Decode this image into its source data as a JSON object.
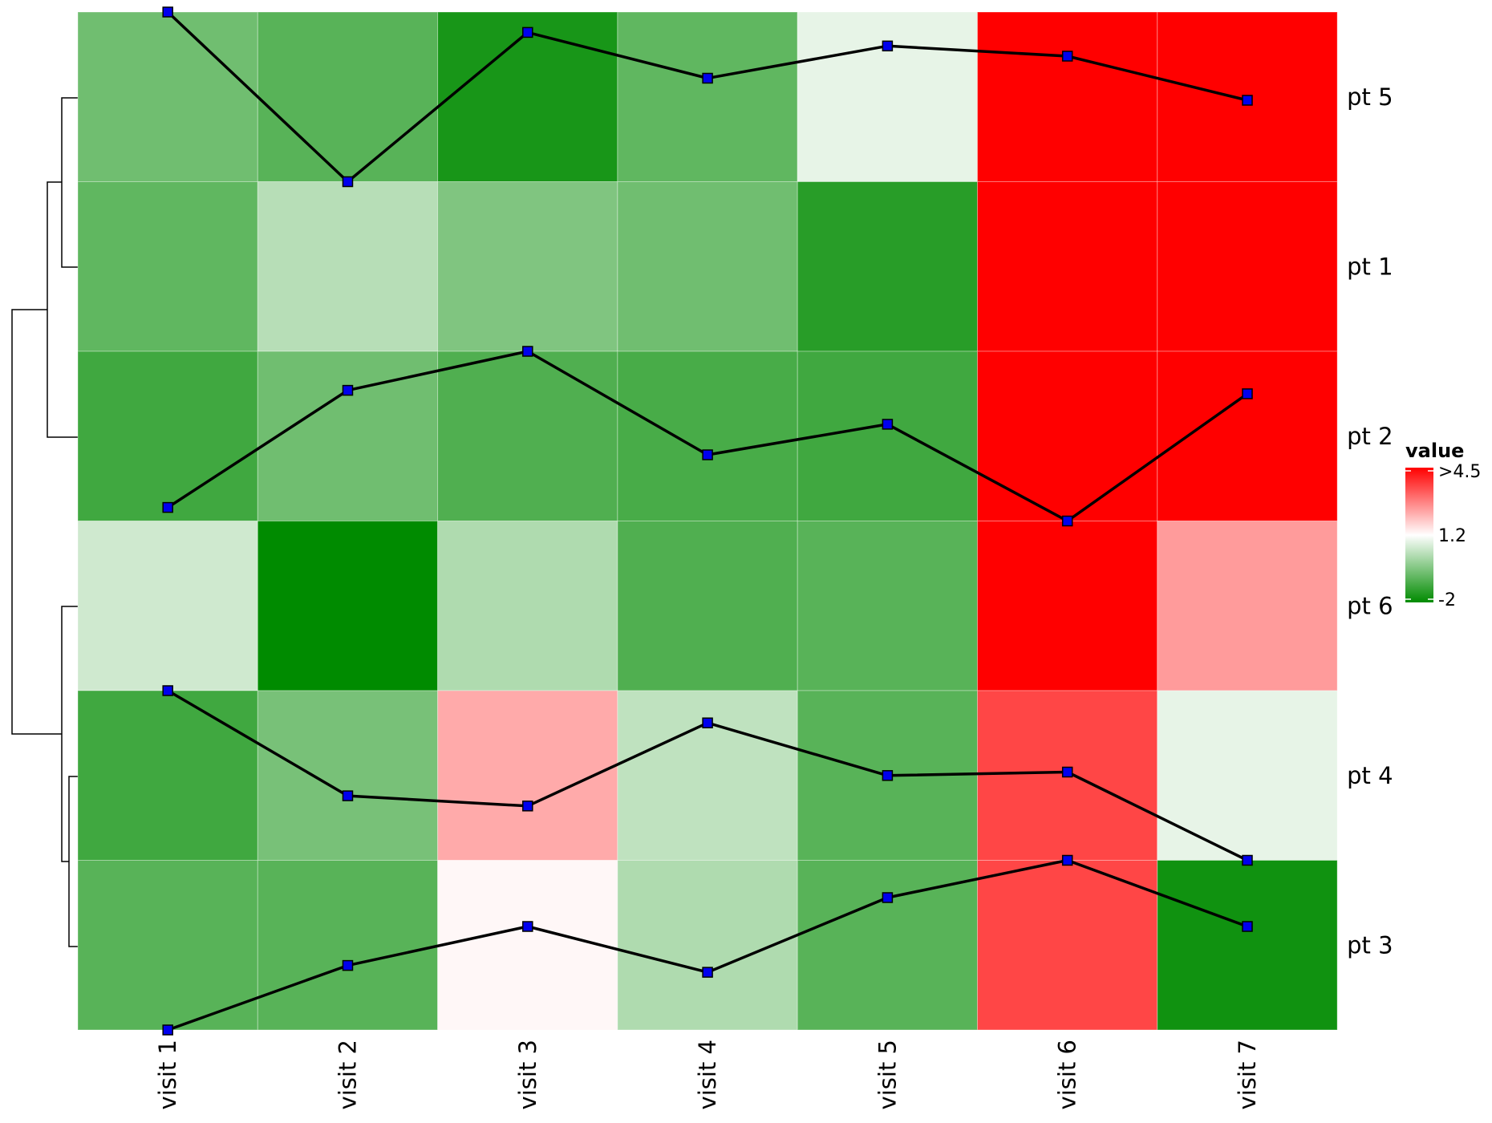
{
  "chart_data": {
    "type": "heatmap",
    "title": "",
    "columns": [
      "visit 1",
      "visit 2",
      "visit 3",
      "visit 4",
      "visit 5",
      "visit 6",
      "visit 7"
    ],
    "rows": [
      "pt 5",
      "pt 1",
      "pt 2",
      "pt 6",
      "pt 4",
      "pt 3"
    ],
    "values": [
      [
        -0.6,
        -0.9,
        -1.7,
        -0.8,
        0.9,
        4.5,
        4.5
      ],
      [
        -0.8,
        0.3,
        -0.4,
        -0.6,
        -1.5,
        4.5,
        4.5
      ],
      [
        -1.2,
        -0.6,
        -1.0,
        -1.1,
        -1.2,
        4.5,
        4.5
      ],
      [
        0.6,
        -2.0,
        0.2,
        -1.0,
        -0.9,
        4.5,
        2.5
      ],
      [
        -1.2,
        -0.5,
        2.3,
        0.4,
        -0.9,
        3.6,
        0.9
      ],
      [
        -0.9,
        -0.9,
        1.3,
        0.2,
        -0.9,
        3.6,
        -1.8
      ]
    ],
    "clip_note_max": ">4.5",
    "row_line_overlays": [
      [
        1.0,
        0.0,
        0.88,
        0.61,
        0.8,
        0.74,
        0.48
      ],
      [
        0.08,
        0.77,
        1.0,
        0.39,
        0.57,
        0.0,
        0.75
      ],
      [
        1.0,
        0.38,
        0.32,
        0.81,
        0.5,
        0.52,
        0.0
      ],
      [
        0.0,
        0.38,
        0.61,
        0.34,
        0.78,
        1.0,
        0.61
      ]
    ],
    "overlay_rows": [
      "pt 5",
      "pt 2",
      "pt 4",
      "pt 3"
    ],
    "colorscale": {
      "title": "value",
      "min": -2,
      "mid": 1.2,
      "max": 4.5,
      "tick_labels": [
        ">4.5",
        "1.2",
        "-2"
      ],
      "low_color": "#008b00",
      "mid_color": "#ffffff",
      "high_color": "#ff0000"
    },
    "line_color": "#000000",
    "marker_color": "#0000ee",
    "dendrogram": "rows",
    "legend_position": "right"
  }
}
